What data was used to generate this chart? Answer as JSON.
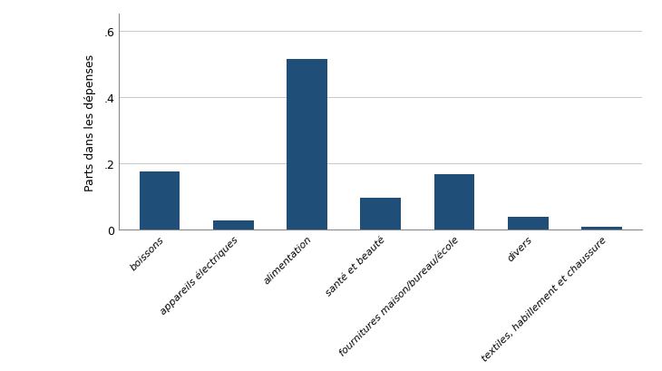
{
  "categories": [
    "boissons",
    "appareils électriques",
    "alimentation",
    "santé et beauté",
    "fournitures maison/bureau/école",
    "divers",
    "textiles, habillement et chaussure"
  ],
  "values": [
    0.175,
    0.028,
    0.515,
    0.097,
    0.168,
    0.038,
    0.008
  ],
  "bar_color": "#1f4e79",
  "ylabel": "Parts dans les dépenses",
  "ylim": [
    0,
    0.65
  ],
  "yticks": [
    0.0,
    0.2,
    0.4,
    0.6
  ],
  "ytick_labels": [
    "0",
    ".2",
    ".4",
    ".6"
  ],
  "background_color": "#ffffff",
  "grid_color": "#c8c8c8",
  "bar_width": 0.55
}
